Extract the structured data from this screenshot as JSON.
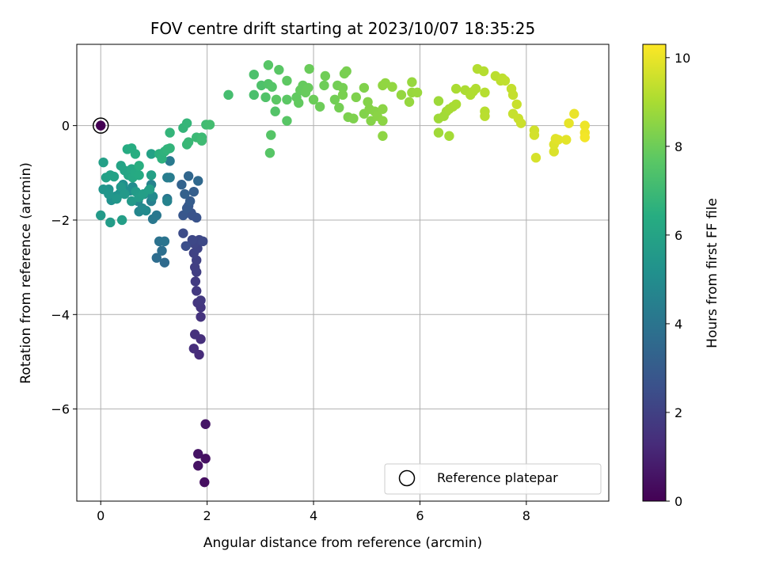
{
  "chart_data": {
    "type": "scatter",
    "title": "FOV centre drift starting at 2023/10/07 18:35:25",
    "xlabel": "Angular distance from reference (arcmin)",
    "ylabel": "Rotation from reference (arcmin)",
    "xlim": [
      -0.45,
      9.55
    ],
    "ylim": [
      -7.95,
      1.72
    ],
    "xticks": [
      0,
      2,
      4,
      6,
      8
    ],
    "yticks": [
      0,
      -2,
      -4,
      -6
    ],
    "xtick_labels": [
      "0",
      "2",
      "4",
      "6",
      "8"
    ],
    "ytick_labels": [
      "0",
      "−2",
      "−4",
      "−6"
    ],
    "grid": true,
    "colormap": "viridis",
    "colorbar": {
      "label": "Hours from first FF file",
      "range": [
        0,
        10.3
      ],
      "ticks": [
        0,
        2,
        4,
        6,
        8,
        10
      ],
      "tick_labels": [
        "0",
        "2",
        "4",
        "6",
        "8",
        "10"
      ]
    },
    "legend": {
      "position": "bottom-right",
      "entries": [
        "Reference platepar"
      ]
    },
    "reference_point": {
      "x": 0,
      "y": 0,
      "hours": 0
    },
    "points": [
      [
        1.95,
        -7.55,
        0.4
      ],
      [
        1.97,
        -7.05,
        0.45
      ],
      [
        1.83,
        -7.2,
        0.5
      ],
      [
        1.83,
        -6.95,
        0.55
      ],
      [
        1.97,
        -6.32,
        0.6
      ],
      [
        1.85,
        -4.85,
        1.3
      ],
      [
        1.75,
        -4.72,
        1.35
      ],
      [
        1.88,
        -4.52,
        1.4
      ],
      [
        1.77,
        -4.42,
        1.45
      ],
      [
        1.88,
        -4.05,
        1.55
      ],
      [
        1.88,
        -3.85,
        1.6
      ],
      [
        1.82,
        -3.75,
        1.65
      ],
      [
        1.88,
        -3.7,
        1.7
      ],
      [
        1.8,
        -3.5,
        1.75
      ],
      [
        1.78,
        -3.3,
        1.8
      ],
      [
        1.8,
        -3.1,
        1.9
      ],
      [
        1.77,
        -3.0,
        1.95
      ],
      [
        1.8,
        -2.85,
        2.0
      ],
      [
        1.75,
        -2.7,
        2.05
      ],
      [
        1.82,
        -2.6,
        2.1
      ],
      [
        1.76,
        -2.5,
        2.15
      ],
      [
        1.85,
        -2.42,
        2.2
      ],
      [
        1.72,
        -2.42,
        2.25
      ],
      [
        1.92,
        -2.45,
        2.3
      ],
      [
        1.55,
        -2.28,
        2.4
      ],
      [
        1.6,
        -2.55,
        2.5
      ],
      [
        1.72,
        -1.9,
        2.6
      ],
      [
        1.8,
        -1.95,
        2.65
      ],
      [
        1.7,
        -1.85,
        2.7
      ],
      [
        1.65,
        -1.7,
        2.75
      ],
      [
        1.55,
        -1.9,
        2.8
      ],
      [
        1.62,
        -1.75,
        2.9
      ],
      [
        1.68,
        -1.6,
        3.0
      ],
      [
        1.75,
        -1.4,
        3.1
      ],
      [
        1.58,
        -1.45,
        3.2
      ],
      [
        1.52,
        -1.25,
        3.3
      ],
      [
        1.65,
        -1.07,
        3.4
      ],
      [
        1.83,
        -1.17,
        3.5
      ],
      [
        1.2,
        -2.9,
        3.6
      ],
      [
        1.05,
        -2.8,
        3.7
      ],
      [
        1.15,
        -2.65,
        3.8
      ],
      [
        1.1,
        -2.45,
        3.9
      ],
      [
        1.2,
        -2.45,
        4.0
      ],
      [
        1.25,
        -1.55,
        4.05
      ],
      [
        1.05,
        -1.9,
        4.1
      ],
      [
        0.98,
        -1.98,
        4.15
      ],
      [
        1.3,
        -0.75,
        4.25
      ],
      [
        1.3,
        -1.1,
        4.3
      ],
      [
        1.25,
        -1.1,
        4.35
      ],
      [
        0.95,
        -1.6,
        4.5
      ],
      [
        1.25,
        -1.6,
        4.55
      ],
      [
        0.95,
        -1.25,
        4.6
      ],
      [
        0.9,
        -1.38,
        4.65
      ],
      [
        0.82,
        -1.45,
        4.7
      ],
      [
        0.72,
        -1.82,
        4.75
      ],
      [
        0.7,
        -1.6,
        4.8
      ],
      [
        0.78,
        -1.75,
        4.85
      ],
      [
        0.85,
        -1.8,
        4.9
      ],
      [
        0.98,
        -1.5,
        4.95
      ],
      [
        0.6,
        -1.3,
        5.0
      ],
      [
        0.55,
        -1.38,
        5.05
      ],
      [
        0.42,
        -1.25,
        5.1
      ],
      [
        0.35,
        -1.45,
        5.15
      ],
      [
        0.2,
        -1.58,
        5.2
      ],
      [
        0.28,
        -1.5,
        5.25
      ],
      [
        0.15,
        -1.35,
        5.3
      ],
      [
        0.05,
        -1.35,
        5.35
      ],
      [
        0.15,
        -1.45,
        5.4
      ],
      [
        0.3,
        -1.55,
        5.45
      ],
      [
        0.38,
        -1.3,
        5.5
      ],
      [
        0.45,
        -1.45,
        5.55
      ],
      [
        0.58,
        -1.6,
        5.6
      ],
      [
        0.66,
        -1.4,
        5.65
      ],
      [
        0.72,
        -1.52,
        5.7
      ],
      [
        0.8,
        -1.45,
        5.75
      ],
      [
        0.92,
        -1.35,
        5.8
      ],
      [
        0.0,
        -1.9,
        5.6
      ],
      [
        0.18,
        -2.05,
        5.7
      ],
      [
        0.4,
        -2.0,
        5.75
      ],
      [
        0.95,
        -1.05,
        5.85
      ],
      [
        0.95,
        -0.6,
        5.9
      ],
      [
        0.05,
        -0.78,
        5.8
      ],
      [
        0.1,
        -1.1,
        5.85
      ],
      [
        0.18,
        -1.05,
        5.9
      ],
      [
        0.25,
        -1.08,
        5.95
      ],
      [
        0.38,
        -0.85,
        6.0
      ],
      [
        0.45,
        -0.95,
        6.05
      ],
      [
        0.52,
        -1.05,
        6.1
      ],
      [
        0.58,
        -0.92,
        6.15
      ],
      [
        0.6,
        -1.1,
        6.2
      ],
      [
        0.65,
        -1.0,
        6.25
      ],
      [
        0.72,
        -1.05,
        6.3
      ],
      [
        0.5,
        -0.5,
        6.35
      ],
      [
        0.58,
        -0.48,
        6.4
      ],
      [
        0.65,
        -0.6,
        6.45
      ],
      [
        0.72,
        -0.85,
        6.5
      ],
      [
        1.1,
        -0.6,
        6.55
      ],
      [
        1.15,
        -0.7,
        6.6
      ],
      [
        1.2,
        -0.55,
        6.65
      ],
      [
        1.25,
        -0.5,
        6.7
      ],
      [
        1.3,
        -0.48,
        6.72
      ],
      [
        1.3,
        -0.15,
        6.75
      ],
      [
        1.55,
        -0.05,
        6.78
      ],
      [
        1.62,
        0.05,
        6.8
      ],
      [
        1.62,
        -0.4,
        6.85
      ],
      [
        1.65,
        -0.35,
        6.9
      ],
      [
        1.8,
        -0.25,
        6.95
      ],
      [
        1.9,
        -0.25,
        7.0
      ],
      [
        1.9,
        -0.32,
        7.05
      ],
      [
        1.98,
        0.02,
        7.1
      ],
      [
        2.05,
        0.02,
        7.15
      ],
      [
        2.4,
        0.65,
        7.2
      ],
      [
        2.88,
        0.65,
        7.3
      ],
      [
        2.88,
        1.08,
        7.35
      ],
      [
        3.02,
        0.85,
        7.4
      ],
      [
        3.1,
        0.6,
        7.45
      ],
      [
        3.15,
        0.88,
        7.5
      ],
      [
        3.22,
        0.82,
        7.55
      ],
      [
        3.15,
        1.28,
        7.6
      ],
      [
        3.35,
        1.18,
        7.65
      ],
      [
        3.3,
        0.55,
        7.7
      ],
      [
        3.28,
        0.3,
        7.5
      ],
      [
        3.2,
        -0.2,
        7.55
      ],
      [
        3.18,
        -0.58,
        7.6
      ],
      [
        3.5,
        0.1,
        7.62
      ],
      [
        3.5,
        0.55,
        7.7
      ],
      [
        3.5,
        0.95,
        7.75
      ],
      [
        3.68,
        0.6,
        7.8
      ],
      [
        3.72,
        0.48,
        7.82
      ],
      [
        3.75,
        0.75,
        7.85
      ],
      [
        3.8,
        0.85,
        7.88
      ],
      [
        3.85,
        0.7,
        7.9
      ],
      [
        3.9,
        0.8,
        7.92
      ],
      [
        3.92,
        1.2,
        7.95
      ],
      [
        4.0,
        0.55,
        7.98
      ],
      [
        4.12,
        0.4,
        8.0
      ],
      [
        4.2,
        0.85,
        8.02
      ],
      [
        4.22,
        1.05,
        8.05
      ],
      [
        4.4,
        0.55,
        8.08
      ],
      [
        4.45,
        0.85,
        8.1
      ],
      [
        4.48,
        0.38,
        8.12
      ],
      [
        4.55,
        0.8,
        8.15
      ],
      [
        4.58,
        1.1,
        8.18
      ],
      [
        4.62,
        1.15,
        8.2
      ],
      [
        4.55,
        0.65,
        8.22
      ],
      [
        4.65,
        0.18,
        8.25
      ],
      [
        4.75,
        0.15,
        8.28
      ],
      [
        4.8,
        0.6,
        8.3
      ],
      [
        4.95,
        0.8,
        8.32
      ],
      [
        4.95,
        0.25,
        8.35
      ],
      [
        5.02,
        0.5,
        8.38
      ],
      [
        5.05,
        0.35,
        8.4
      ],
      [
        5.08,
        0.1,
        8.42
      ],
      [
        5.15,
        0.3,
        8.45
      ],
      [
        5.2,
        0.2,
        8.48
      ],
      [
        5.3,
        0.35,
        8.5
      ],
      [
        5.3,
        0.1,
        8.52
      ],
      [
        5.3,
        -0.22,
        8.55
      ],
      [
        5.3,
        0.85,
        8.58
      ],
      [
        5.35,
        0.9,
        8.6
      ],
      [
        5.48,
        0.82,
        8.62
      ],
      [
        5.65,
        0.65,
        8.65
      ],
      [
        5.8,
        0.5,
        8.68
      ],
      [
        5.85,
        0.92,
        8.7
      ],
      [
        5.85,
        0.7,
        8.72
      ],
      [
        5.95,
        0.7,
        8.75
      ],
      [
        6.35,
        0.52,
        8.8
      ],
      [
        6.35,
        0.15,
        8.82
      ],
      [
        6.35,
        -0.15,
        8.85
      ],
      [
        6.45,
        0.2,
        8.88
      ],
      [
        6.5,
        0.3,
        8.9
      ],
      [
        6.55,
        -0.22,
        8.92
      ],
      [
        6.55,
        0.35,
        8.95
      ],
      [
        6.62,
        0.4,
        8.98
      ],
      [
        6.68,
        0.45,
        9.0
      ],
      [
        6.68,
        0.78,
        9.02
      ],
      [
        6.85,
        0.75,
        9.05
      ],
      [
        6.95,
        0.65,
        9.08
      ],
      [
        7.0,
        0.72,
        9.1
      ],
      [
        7.05,
        0.78,
        9.12
      ],
      [
        7.08,
        1.2,
        9.15
      ],
      [
        7.2,
        1.15,
        9.18
      ],
      [
        7.22,
        0.7,
        9.2
      ],
      [
        7.22,
        0.3,
        9.22
      ],
      [
        7.22,
        0.2,
        9.25
      ],
      [
        7.42,
        1.05,
        9.28
      ],
      [
        7.52,
        0.95,
        9.3
      ],
      [
        7.55,
        1.0,
        9.32
      ],
      [
        7.6,
        0.95,
        9.35
      ],
      [
        7.72,
        0.78,
        9.4
      ],
      [
        7.75,
        0.65,
        9.42
      ],
      [
        7.75,
        0.25,
        9.45
      ],
      [
        7.82,
        0.45,
        9.48
      ],
      [
        7.85,
        0.15,
        9.5
      ],
      [
        7.9,
        0.05,
        9.52
      ],
      [
        8.15,
        -0.1,
        9.6
      ],
      [
        8.15,
        -0.2,
        9.65
      ],
      [
        8.18,
        -0.68,
        9.7
      ],
      [
        8.52,
        -0.55,
        9.75
      ],
      [
        8.52,
        -0.4,
        9.8
      ],
      [
        8.55,
        -0.28,
        9.85
      ],
      [
        8.6,
        -0.3,
        9.88
      ],
      [
        8.75,
        -0.3,
        9.9
      ],
      [
        8.8,
        0.05,
        9.95
      ],
      [
        8.9,
        0.25,
        10.0
      ],
      [
        9.1,
        0.0,
        10.05
      ],
      [
        9.1,
        -0.15,
        10.1
      ],
      [
        9.1,
        -0.25,
        10.15
      ]
    ]
  }
}
